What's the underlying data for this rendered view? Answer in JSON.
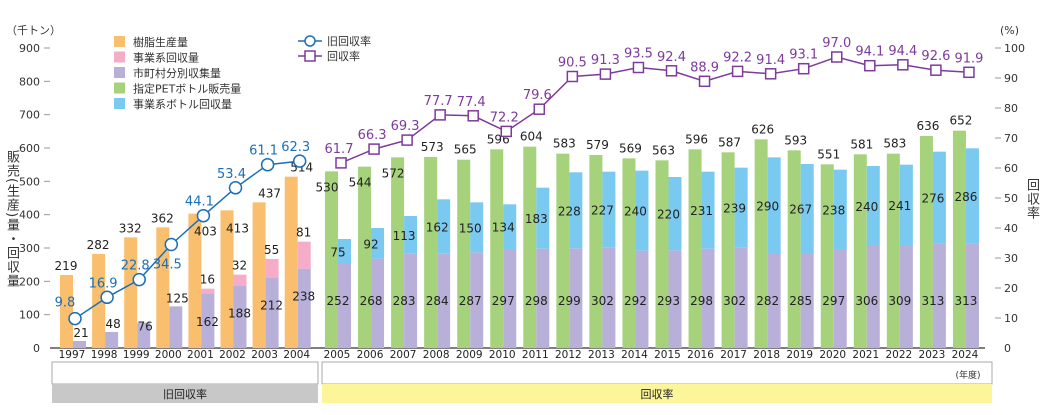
{
  "chart_data": {
    "type": "bar",
    "left_axis": {
      "unit": "（千トン）",
      "title": "販売(生産)量・回収量",
      "range": [
        0,
        900
      ],
      "ticks": [
        0,
        100,
        200,
        300,
        400,
        500,
        600,
        700,
        800,
        900
      ]
    },
    "right_axis": {
      "unit": "(%)",
      "title": "回収率",
      "range": [
        0,
        100
      ],
      "ticks": [
        0,
        10,
        20,
        30,
        40,
        50,
        60,
        70,
        80,
        90,
        100
      ]
    },
    "x_unit": "(年度)",
    "grid": false,
    "legend_position": "top-left",
    "legend": {
      "resin": "樹脂生産量",
      "business_collect": "事業系回収量",
      "municipal": "市町村分別収集量",
      "pet_sales": "指定PETボトル販売量",
      "business_bottle": "事業系ボトル回収量",
      "old_rate": "旧回収率",
      "rate": "回収率"
    },
    "colors": {
      "resin": "#f9bf6e",
      "business_collect": "#f4acc8",
      "municipal": "#b8b0d8",
      "pet_sales": "#a6d27c",
      "business_bottle": "#79c9f0",
      "old_rate": "#1b6fb8",
      "rate": "#7e3a9c",
      "old_band": "#c8c8c8",
      "new_band": "#fdf59a"
    },
    "period_bands": {
      "old": "旧回収率",
      "new": "回収率"
    },
    "old_period": {
      "years": [
        "1997",
        "1998",
        "1999",
        "2000",
        "2001",
        "2002",
        "2003",
        "2004"
      ],
      "resin": [
        219,
        282,
        332,
        362,
        403,
        413,
        437,
        514
      ],
      "business_collect": [
        null,
        null,
        null,
        null,
        16,
        32,
        55,
        81
      ],
      "municipal": [
        21,
        48,
        76,
        125,
        162,
        188,
        212,
        238
      ],
      "old_rate": [
        9.8,
        16.9,
        22.8,
        34.5,
        44.1,
        53.4,
        61.1,
        62.3
      ]
    },
    "new_period": {
      "years": [
        "2005",
        "2006",
        "2007",
        "2008",
        "2009",
        "2010",
        "2011",
        "2012",
        "2013",
        "2014",
        "2015",
        "2016",
        "2017",
        "2018",
        "2019",
        "2020",
        "2021",
        "2022",
        "2023",
        "2024"
      ],
      "pet_sales": [
        530,
        544,
        572,
        573,
        565,
        596,
        604,
        583,
        579,
        569,
        563,
        596,
        587,
        626,
        593,
        551,
        581,
        583,
        636,
        652
      ],
      "municipal": [
        252,
        268,
        283,
        284,
        287,
        297,
        298,
        299,
        302,
        292,
        293,
        298,
        302,
        282,
        285,
        297,
        306,
        309,
        313,
        313
      ],
      "business_bottle": [
        75,
        92,
        113,
        162,
        150,
        134,
        183,
        228,
        227,
        240,
        220,
        231,
        239,
        290,
        267,
        238,
        240,
        241,
        276,
        286
      ],
      "rate": [
        61.7,
        66.3,
        69.3,
        77.7,
        77.4,
        72.2,
        79.6,
        90.5,
        91.3,
        93.5,
        92.4,
        88.9,
        92.2,
        91.4,
        93.1,
        97.0,
        94.1,
        94.4,
        92.6,
        91.9
      ]
    }
  }
}
